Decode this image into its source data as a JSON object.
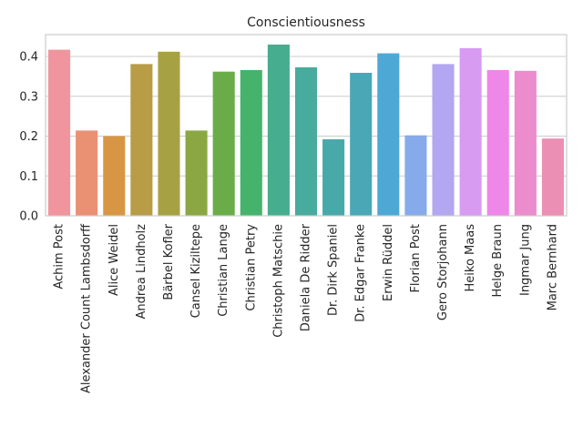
{
  "chart_data": {
    "type": "bar",
    "title": "Conscientiousness",
    "xlabel": "",
    "ylabel": "",
    "ylim": [
      0,
      0.455
    ],
    "yticks": [
      0.0,
      0.1,
      0.2,
      0.3,
      0.4
    ],
    "ytick_labels": [
      "0.0",
      "0.1",
      "0.2",
      "0.3",
      "0.4"
    ],
    "grid": "horizontal",
    "categories": [
      "Achim Post",
      "Alexander Count Lambsdorff",
      "Alice Weidel",
      "Andrea Lindholz",
      "Bärbel Kofler",
      "Cansel Kiziltepe",
      "Christian Lange",
      "Christian Petry",
      "Christoph Matschie",
      "Daniela De Ridder",
      "Dr. Dirk Spaniel",
      "Dr. Edgar Franke",
      "Erwin Rüddel",
      "Florian Post",
      "Gero Storjohann",
      "Heiko Maas",
      "Helge Braun",
      "Ingmar Jung",
      "Marc Bernhard"
    ],
    "values": [
      0.417,
      0.214,
      0.2,
      0.381,
      0.412,
      0.214,
      0.362,
      0.366,
      0.43,
      0.373,
      0.192,
      0.359,
      0.408,
      0.202,
      0.381,
      0.421,
      0.366,
      0.364,
      0.194
    ],
    "colors": [
      "#f0949e",
      "#ea9073",
      "#d89644",
      "#b89c46",
      "#a6a244",
      "#8ba743",
      "#6aad48",
      "#46b36d",
      "#46ae8e",
      "#47ab9e",
      "#48a9a9",
      "#4aa7b6",
      "#4ea8d6",
      "#87abea",
      "#b2a7f0",
      "#d79bf1",
      "#ef87e9",
      "#ec8ccc",
      "#ec8fb5"
    ]
  }
}
